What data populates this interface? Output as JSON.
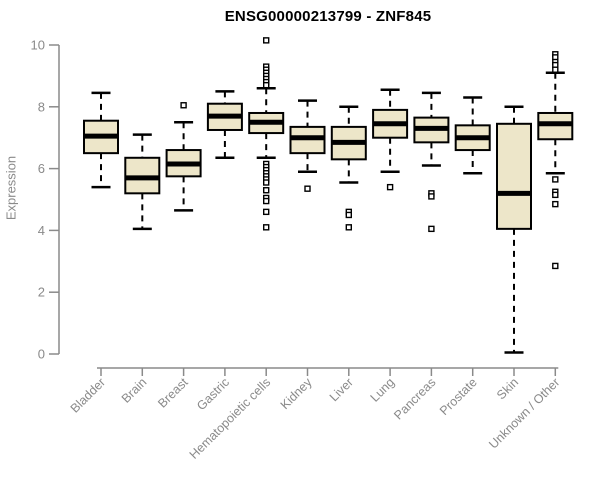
{
  "chart_data": {
    "type": "boxplot",
    "title": "ENSG00000213799 - ZNF845",
    "ylabel": "Expression",
    "xlabel": "",
    "ylim": [
      0,
      10
    ],
    "yticks": [
      0,
      2,
      4,
      6,
      8,
      10
    ],
    "grid": false,
    "legend": false,
    "colors": {
      "box_fill": "#EDE6C9",
      "box_stroke": "#000000",
      "median": "#000000",
      "whisker": "#000000",
      "axis": "#8A8A8A",
      "tick_label": "#8A8A8A",
      "title": "#000000",
      "background": "#FFFFFF"
    },
    "categories": [
      "Bladder",
      "Brain",
      "Breast",
      "Gastric",
      "Hematopoietic cells",
      "Kidney",
      "Liver",
      "Lung",
      "Pancreas",
      "Prostate",
      "Skin",
      "Unknown / Other"
    ],
    "boxes": [
      {
        "category": "Bladder",
        "whisker_low": 5.4,
        "q1": 6.5,
        "median": 7.05,
        "q3": 7.55,
        "whisker_high": 8.45,
        "outliers": []
      },
      {
        "category": "Brain",
        "whisker_low": 4.05,
        "q1": 5.2,
        "median": 5.7,
        "q3": 6.35,
        "whisker_high": 7.1,
        "outliers": []
      },
      {
        "category": "Breast",
        "whisker_low": 4.65,
        "q1": 5.75,
        "median": 6.15,
        "q3": 6.6,
        "whisker_high": 7.5,
        "outliers": [
          8.05
        ]
      },
      {
        "category": "Gastric",
        "whisker_low": 6.35,
        "q1": 7.25,
        "median": 7.7,
        "q3": 8.1,
        "whisker_high": 8.5,
        "outliers": []
      },
      {
        "category": "Hematopoietic cells",
        "whisker_low": 6.35,
        "q1": 7.15,
        "median": 7.5,
        "q3": 7.8,
        "whisker_high": 8.6,
        "outliers": [
          10.15,
          9.3,
          9.2,
          9.1,
          9.0,
          8.9,
          8.8,
          8.7,
          6.15,
          6.05,
          5.95,
          5.85,
          5.75,
          5.65,
          5.55,
          5.3,
          5.05,
          4.95,
          4.6,
          4.1
        ]
      },
      {
        "category": "Kidney",
        "whisker_low": 5.9,
        "q1": 6.5,
        "median": 7.0,
        "q3": 7.35,
        "whisker_high": 8.2,
        "outliers": [
          5.35
        ]
      },
      {
        "category": "Liver",
        "whisker_low": 5.55,
        "q1": 6.3,
        "median": 6.85,
        "q3": 7.35,
        "whisker_high": 8.0,
        "outliers": [
          4.6,
          4.5,
          4.1
        ]
      },
      {
        "category": "Lung",
        "whisker_low": 5.9,
        "q1": 7.0,
        "median": 7.45,
        "q3": 7.9,
        "whisker_high": 8.55,
        "outliers": [
          5.4
        ]
      },
      {
        "category": "Pancreas",
        "whisker_low": 6.1,
        "q1": 6.85,
        "median": 7.3,
        "q3": 7.65,
        "whisker_high": 8.45,
        "outliers": [
          5.2,
          5.1,
          4.05
        ]
      },
      {
        "category": "Prostate",
        "whisker_low": 5.85,
        "q1": 6.6,
        "median": 7.0,
        "q3": 7.4,
        "whisker_high": 8.3,
        "outliers": []
      },
      {
        "category": "Skin",
        "whisker_low": 0.05,
        "q1": 4.05,
        "median": 5.2,
        "q3": 7.45,
        "whisker_high": 8.0,
        "outliers": []
      },
      {
        "category": "Unknown / Other",
        "whisker_low": 5.85,
        "q1": 6.95,
        "median": 7.45,
        "q3": 7.8,
        "whisker_high": 9.1,
        "outliers": [
          9.7,
          9.6,
          9.45,
          9.35,
          9.2,
          5.65,
          5.25,
          5.15,
          4.85,
          2.85
        ]
      }
    ]
  }
}
